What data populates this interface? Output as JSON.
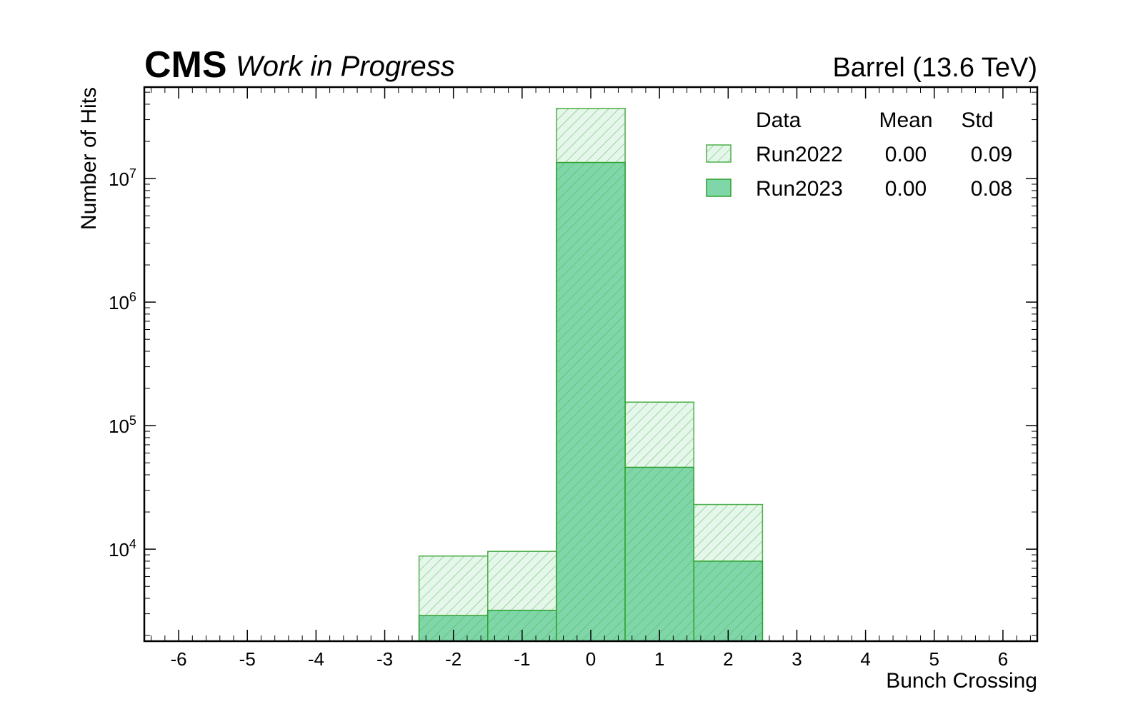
{
  "chart_data": {
    "type": "bar",
    "histtype": "step-filled",
    "title_left_bold": "CMS",
    "title_left_italic": "Work in Progress",
    "title_right": "Barrel (13.6 TeV)",
    "xlabel": "Bunch Crossing",
    "ylabel": "Number of Hits",
    "yscale": "log",
    "xlim": [
      -6.5,
      6.5
    ],
    "ylim": [
      1800,
      55000000
    ],
    "x_ticks": [
      -6,
      -5,
      -4,
      -3,
      -2,
      -1,
      0,
      1,
      2,
      3,
      4,
      5,
      6
    ],
    "x_tick_labels": [
      "-6",
      "-5",
      "-4",
      "-3",
      "-2",
      "-1",
      "0",
      "1",
      "2",
      "3",
      "4",
      "5",
      "6"
    ],
    "y_major_ticks": [
      {
        "value": 10000,
        "base": "10",
        "exp": "4"
      },
      {
        "value": 100000,
        "base": "10",
        "exp": "5"
      },
      {
        "value": 1000000,
        "base": "10",
        "exp": "6"
      },
      {
        "value": 10000000,
        "base": "10",
        "exp": "7"
      }
    ],
    "categories": [
      -2,
      -1,
      0,
      1,
      2
    ],
    "series": [
      {
        "name": "Run2022",
        "values": [
          8800,
          9600,
          37000000,
          155000,
          23000
        ],
        "fill": "#e5f6ea",
        "edge": "#4daf4a",
        "hatch": true,
        "mean": "0.00",
        "std": "0.09"
      },
      {
        "name": "Run2023",
        "values": [
          2900,
          3200,
          13500000,
          46000,
          8000
        ],
        "fill": "#7fd6a8",
        "edge": "#2ca02c",
        "hatch": true,
        "mean": "0.00",
        "std": "0.08"
      }
    ],
    "legend": {
      "placement": "top-right",
      "headers": [
        "Data",
        "Mean",
        "Std"
      ]
    },
    "grid": false
  }
}
